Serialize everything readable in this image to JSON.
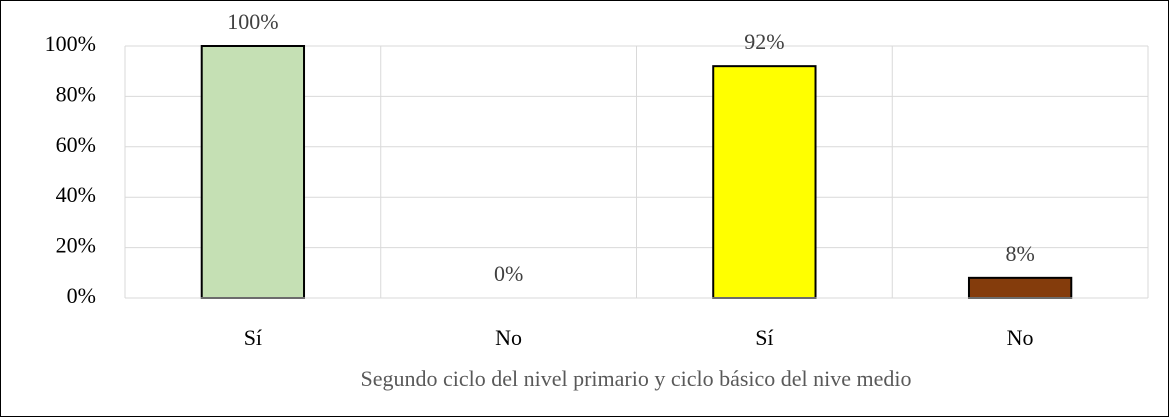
{
  "chart_data": {
    "type": "bar",
    "categories": [
      "Sí",
      "No",
      "Sí",
      "No"
    ],
    "values": [
      100,
      0,
      92,
      8
    ],
    "value_labels": [
      "100%",
      "0%",
      "92%",
      "8%"
    ],
    "colors": [
      "#c5e0b4",
      "#ffffff",
      "#ffff00",
      "#843c0c"
    ],
    "x_label": "Segundo ciclo del nivel primario y ciclo básico del nive medio",
    "ylim": [
      0,
      100
    ],
    "yticks": [
      {
        "value": 0,
        "label": "0%"
      },
      {
        "value": 20,
        "label": "20%"
      },
      {
        "value": 40,
        "label": "40%"
      },
      {
        "value": 60,
        "label": "60%"
      },
      {
        "value": 80,
        "label": "80%"
      },
      {
        "value": 100,
        "label": "100%"
      }
    ],
    "grid": true
  }
}
